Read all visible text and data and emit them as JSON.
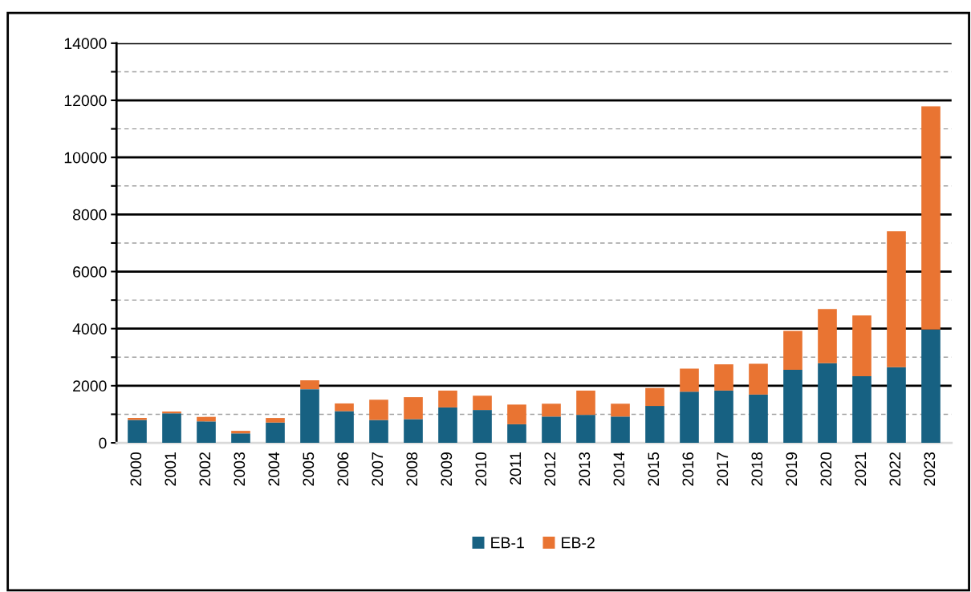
{
  "chart_data": {
    "type": "bar",
    "stacked": true,
    "categories": [
      "2000",
      "2001",
      "2002",
      "2003",
      "2004",
      "2005",
      "2006",
      "2007",
      "2008",
      "2009",
      "2010",
      "2011",
      "2012",
      "2013",
      "2014",
      "2015",
      "2016",
      "2017",
      "2018",
      "2019",
      "2020",
      "2021",
      "2022",
      "2023"
    ],
    "series": [
      {
        "name": "EB-1",
        "color": "#176182",
        "values": [
          800,
          1030,
          750,
          330,
          710,
          1880,
          1110,
          800,
          830,
          1240,
          1150,
          650,
          920,
          980,
          920,
          1290,
          1790,
          1830,
          1690,
          2560,
          2790,
          2330,
          2650,
          3970
        ]
      },
      {
        "name": "EB-2",
        "color": "#e97432",
        "values": [
          70,
          70,
          160,
          90,
          160,
          310,
          270,
          710,
          770,
          590,
          500,
          690,
          450,
          850,
          450,
          630,
          810,
          920,
          1080,
          1360,
          1900,
          2130,
          4760,
          7820
        ]
      }
    ],
    "ylim": [
      0,
      14000
    ],
    "yticks": [
      0,
      {
        "value": 1000,
        "label": null
      },
      2000,
      {
        "value": 3000,
        "label": null
      },
      4000,
      {
        "value": 5000,
        "label": null
      },
      6000,
      {
        "value": 7000,
        "label": null
      },
      8000,
      {
        "value": 9000,
        "label": null
      },
      10000,
      {
        "value": 11000,
        "label": null
      },
      12000,
      {
        "value": 13000,
        "label": null
      },
      14000
    ],
    "grid": "y",
    "legend": "bottom"
  }
}
